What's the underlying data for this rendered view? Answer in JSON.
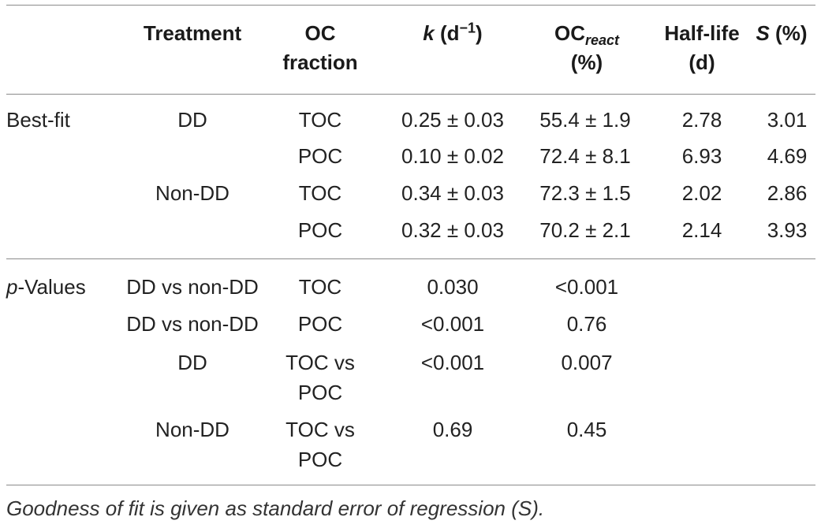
{
  "table": {
    "headers": {
      "treatment": "Treatment",
      "oc_fraction_line1": "OC",
      "oc_fraction_line2": "fraction",
      "k_symbol": "k",
      "k_unit_open": " (d",
      "k_unit_exp": "−1",
      "k_unit_close": ")",
      "ocreact_base": "OC",
      "ocreact_sub": "react",
      "ocreact_unit": "(%)",
      "halflife_line1": "Half-life",
      "halflife_line2": "(d)",
      "s_symbol": "S",
      "s_unit": " (%)"
    },
    "best_fit": {
      "label": "Best-fit",
      "rows": [
        {
          "treatment": "DD",
          "fraction": "TOC",
          "k": "0.25 ± 0.03",
          "ocreact": "55.4 ± 1.9",
          "halflife": "2.78",
          "s": "3.01"
        },
        {
          "treatment": "",
          "fraction": "POC",
          "k": "0.10 ± 0.02",
          "ocreact": "72.4 ± 8.1",
          "halflife": "6.93",
          "s": "4.69"
        },
        {
          "treatment": "Non-DD",
          "fraction": "TOC",
          "k": "0.34 ± 0.03",
          "ocreact": "72.3 ± 1.5",
          "halflife": "2.02",
          "s": "2.86"
        },
        {
          "treatment": "",
          "fraction": "POC",
          "k": "0.32 ± 0.03",
          "ocreact": "70.2 ± 2.1",
          "halflife": "2.14",
          "s": "3.93"
        }
      ]
    },
    "p_values": {
      "label_italic": "p",
      "label_rest": "-Values",
      "rows": [
        {
          "treatment": "DD vs non-DD",
          "fraction_line1": "TOC",
          "fraction_line2": "",
          "k": "0.030",
          "ocreact": "<0.001"
        },
        {
          "treatment": "DD vs non-DD",
          "fraction_line1": "POC",
          "fraction_line2": "",
          "k": "<0.001",
          "ocreact": "0.76"
        },
        {
          "treatment": "DD",
          "fraction_line1": "TOC vs",
          "fraction_line2": "POC",
          "k": "<0.001",
          "ocreact": "0.007"
        },
        {
          "treatment": "Non-DD",
          "fraction_line1": "TOC vs",
          "fraction_line2": "POC",
          "k": "0.69",
          "ocreact": "0.45"
        }
      ]
    },
    "footnote": "Goodness of fit is given as standard error of regression (S)."
  }
}
